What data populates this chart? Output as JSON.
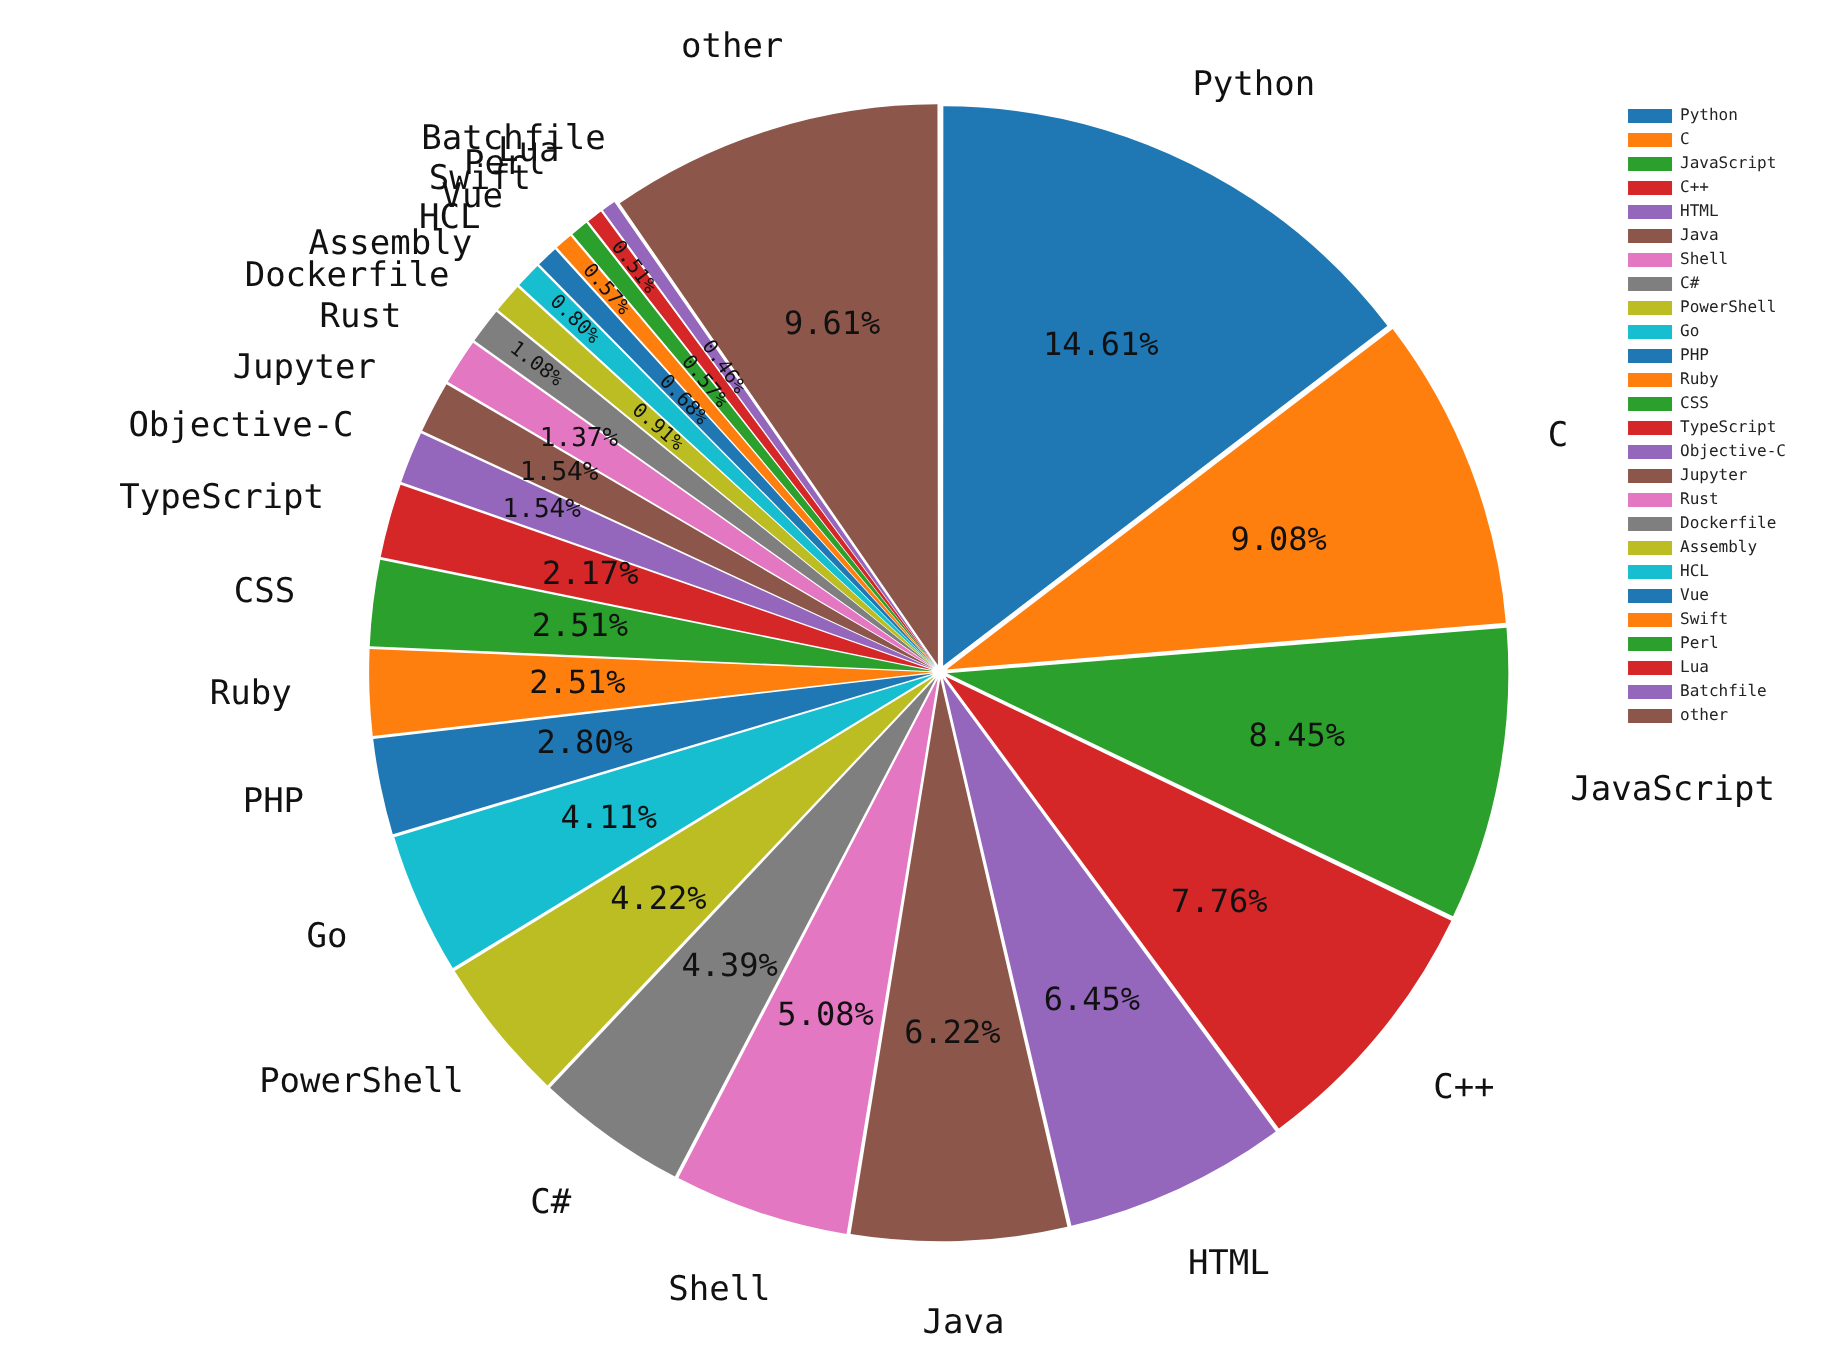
{
  "chart_data": {
    "type": "pie",
    "categories": [
      "Python",
      "C",
      "JavaScript",
      "C++",
      "HTML",
      "Java",
      "Shell",
      "C#",
      "PowerShell",
      "Go",
      "PHP",
      "Ruby",
      "CSS",
      "TypeScript",
      "Objective-C",
      "Jupyter",
      "Rust",
      "Dockerfile",
      "Assembly",
      "HCL",
      "Vue",
      "Swift",
      "Perl",
      "Lua",
      "Batchfile",
      "other"
    ],
    "values": [
      14.61,
      9.08,
      8.45,
      7.76,
      6.45,
      6.22,
      5.08,
      4.39,
      4.22,
      4.11,
      2.8,
      2.51,
      2.51,
      2.17,
      1.54,
      1.54,
      1.37,
      1.08,
      0.91,
      0.8,
      0.68,
      0.57,
      0.57,
      0.51,
      0.46,
      9.61
    ],
    "value_labels": [
      "14.61%",
      "9.08%",
      "8.45%",
      "7.76%",
      "6.45%",
      "6.22%",
      "5.08%",
      "4.39%",
      "4.22%",
      "4.11%",
      "2.80%",
      "2.51%",
      "2.51%",
      "2.17%",
      "1.54%",
      "1.54%",
      "1.37%",
      "1.08%",
      "0.91%",
      "0.80%",
      "0.68%",
      "0.57%",
      "0.57%",
      "0.51%",
      "0.46%",
      "9.61%"
    ],
    "colors": [
      "#1f77b4",
      "#ff7f0e",
      "#2ca02c",
      "#d62728",
      "#9467bd",
      "#8c564b",
      "#e377c2",
      "#7f7f7f",
      "#bcbd22",
      "#17becf",
      "#1f77b4",
      "#ff7f0e",
      "#2ca02c",
      "#d62728",
      "#9467bd",
      "#8c564b",
      "#e377c2",
      "#7f7f7f",
      "#bcbd22",
      "#17becf",
      "#1f77b4",
      "#ff7f0e",
      "#2ca02c",
      "#d62728",
      "#9467bd",
      "#8c564b"
    ],
    "legend": "top right"
  }
}
